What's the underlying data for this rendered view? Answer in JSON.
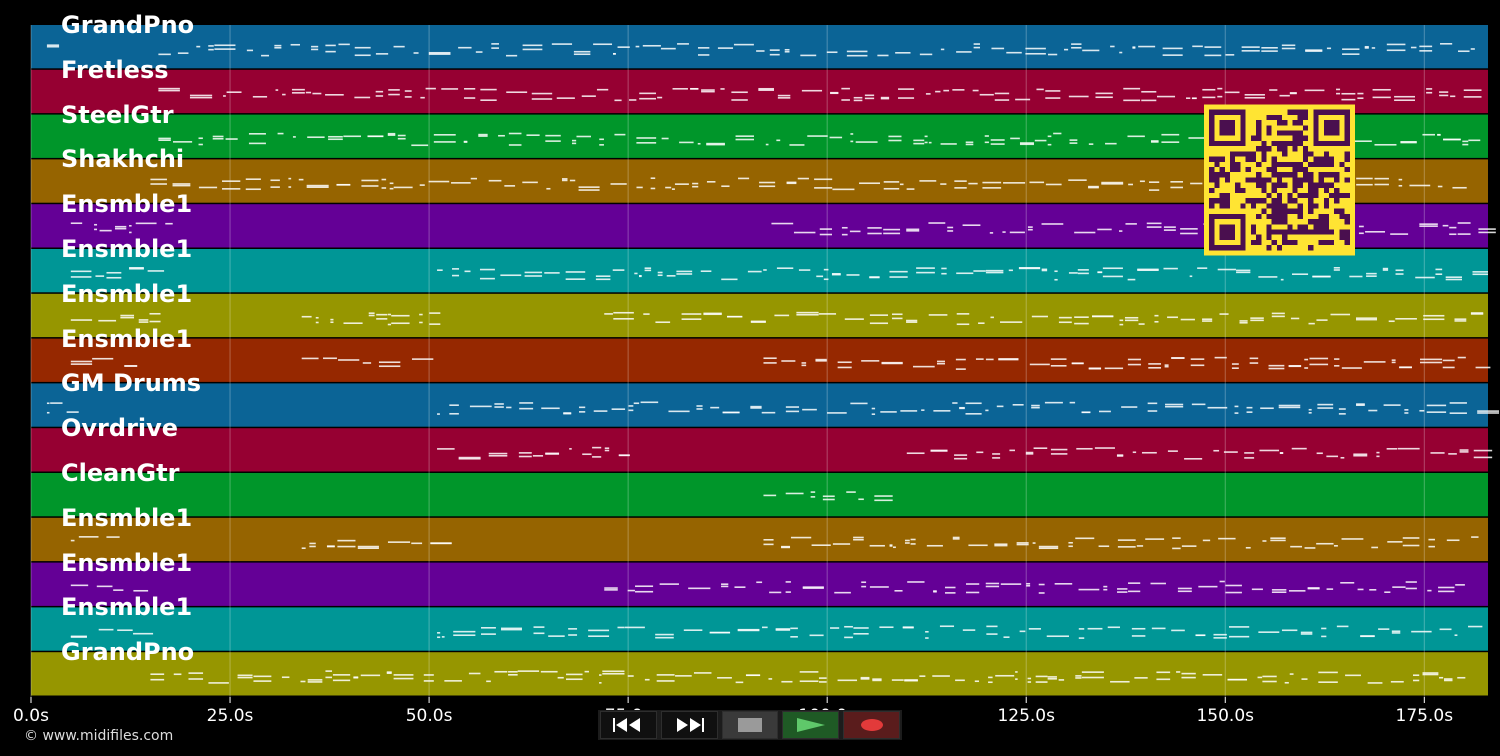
{
  "tracks": [
    {
      "label": "GrandPno",
      "color": "#0b6496"
    },
    {
      "label": "Fretless",
      "color": "#960032"
    },
    {
      "label": "SteelGtr",
      "color": "#00962a"
    },
    {
      "label": "Shakhchi",
      "color": "#966400"
    },
    {
      "label": "Ensmble1",
      "color": "#640096"
    },
    {
      "label": "Ensmble1",
      "color": "#009696"
    },
    {
      "label": "Ensmble1",
      "color": "#969600"
    },
    {
      "label": "Ensmble1",
      "color": "#962800"
    },
    {
      "label": "GM Drums",
      "color": "#0b6496"
    },
    {
      "label": "Ovrdrive",
      "color": "#960032"
    },
    {
      "label": "CleanGtr",
      "color": "#00962a"
    },
    {
      "label": "Ensmble1",
      "color": "#966400"
    },
    {
      "label": "Ensmble1",
      "color": "#640096"
    },
    {
      "label": "Ensmble1",
      "color": "#009696"
    },
    {
      "label": "GrandPno",
      "color": "#969600"
    }
  ],
  "time_axis": {
    "start_seconds": 0,
    "end_seconds": 183,
    "ticks": [
      {
        "value": 0,
        "label": "0.0s"
      },
      {
        "value": 25,
        "label": "25.0s"
      },
      {
        "value": 50,
        "label": "50.0s"
      },
      {
        "value": 75,
        "label": "75.0s"
      },
      {
        "value": 100,
        "label": "100.0s"
      },
      {
        "value": 125,
        "label": "125.0s"
      },
      {
        "value": 150,
        "label": "150.0s"
      },
      {
        "value": 175,
        "label": "175.0s"
      }
    ]
  },
  "copyright": "© www.midifiles.com",
  "transport": {
    "rewind_icon": "rewind-icon",
    "fast_forward_icon": "fast-forward-icon",
    "stop_icon": "stop-icon",
    "play_icon": "play-icon",
    "record_icon": "record-icon"
  },
  "qr_code": {
    "foreground": "#4a0f4f",
    "background": "#ffe433"
  }
}
